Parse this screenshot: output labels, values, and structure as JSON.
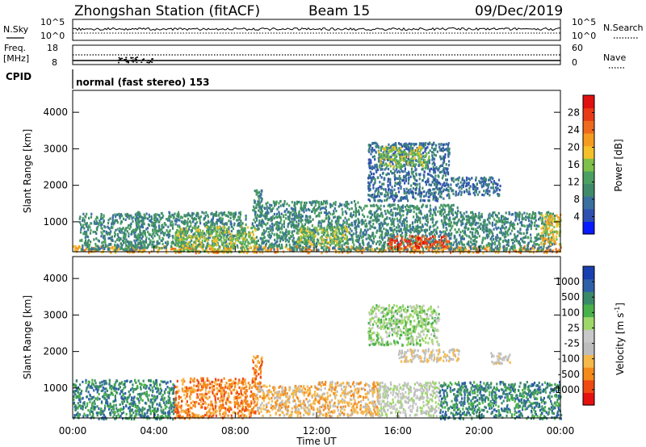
{
  "header": {
    "station": "Zhongshan Station (fitACF)",
    "beam": "Beam 15",
    "date": "09/Dec/2019"
  },
  "top_panels": {
    "nsky_label": "N.Sky",
    "nsky_ticks": [
      "10^5",
      "10^0"
    ],
    "nsearch_label": "N.Search",
    "nsearch_ticks": [
      "10^5",
      "10^0"
    ],
    "freq_label_1": "Freq.",
    "freq_label_2": "[MHz]",
    "freq_ticks": [
      "18",
      "8"
    ],
    "nave_label": "Nave",
    "nave_ticks": [
      "60",
      "0"
    ],
    "cpid_label": "CPID",
    "cpid_text": "normal (fast stereo) 153"
  },
  "colors": {
    "power_scale": [
      "#0a1aff",
      "#2f4fb0",
      "#3a6fa0",
      "#3f8a6a",
      "#4aa060",
      "#7ec04a",
      "#f5c02a",
      "#f59b20",
      "#ef6a1c",
      "#e83a16",
      "#e01010"
    ],
    "velocity_scale": [
      "#e61010",
      "#ef4a12",
      "#f58a1a",
      "#f5b84a",
      "#bdbdbd",
      "#c8c8c8",
      "#9fd86a",
      "#4ab04a",
      "#3a8a6a",
      "#2e60a8",
      "#1a3fb0"
    ]
  },
  "chart_data": [
    {
      "type": "heatmap",
      "title": "",
      "xlabel": "Time UT",
      "ylabel": "Slant Range [km]",
      "x_ticks": [
        "00:00",
        "04:00",
        "08:00",
        "12:00",
        "16:00",
        "20:00",
        "00:00"
      ],
      "y_ticks": [
        1000,
        2000,
        3000,
        4000
      ],
      "ylim": [
        180,
        4600
      ],
      "colorbar": {
        "label": "Power [dB]",
        "ticks": [
          4,
          8,
          12,
          16,
          20,
          24,
          28
        ],
        "range": [
          0,
          30
        ]
      },
      "regions": [
        {
          "t": [
            0.0,
            24.0
          ],
          "r": [
            180,
            360
          ],
          "level": 7
        },
        {
          "t": [
            0.3,
            3.5
          ],
          "r": [
            250,
            1250
          ],
          "level": 3
        },
        {
          "t": [
            3.0,
            8.5
          ],
          "r": [
            300,
            1300
          ],
          "level": 3
        },
        {
          "t": [
            5.0,
            9.0
          ],
          "r": [
            200,
            900
          ],
          "level": 5
        },
        {
          "t": [
            8.8,
            9.3
          ],
          "r": [
            900,
            1900
          ],
          "level": 3
        },
        {
          "t": [
            9.0,
            14.0
          ],
          "r": [
            250,
            1600
          ],
          "level": 3
        },
        {
          "t": [
            11.0,
            13.5
          ],
          "r": [
            400,
            900
          ],
          "level": 5
        },
        {
          "t": [
            14.0,
            19.0
          ],
          "r": [
            250,
            1500
          ],
          "level": 3
        },
        {
          "t": [
            15.5,
            18.5
          ],
          "r": [
            300,
            650
          ],
          "level": 9
        },
        {
          "t": [
            14.5,
            18.5
          ],
          "r": [
            1600,
            3200
          ],
          "level": 2
        },
        {
          "t": [
            15.0,
            17.5
          ],
          "r": [
            2500,
            3100
          ],
          "level": 5
        },
        {
          "t": [
            18.5,
            21.0
          ],
          "r": [
            1750,
            2250
          ],
          "level": 2
        },
        {
          "t": [
            19.0,
            23.7
          ],
          "r": [
            250,
            1300
          ],
          "level": 3
        },
        {
          "t": [
            23.0,
            24.0
          ],
          "r": [
            400,
            1250
          ],
          "level": 6
        }
      ]
    },
    {
      "type": "heatmap",
      "title": "",
      "xlabel": "Time UT",
      "ylabel": "Slant Range [km]",
      "x_ticks": [
        "00:00",
        "04:00",
        "08:00",
        "12:00",
        "16:00",
        "20:00",
        "00:00"
      ],
      "y_ticks": [
        1000,
        2000,
        3000,
        4000
      ],
      "ylim": [
        180,
        4600
      ],
      "colorbar": {
        "label": "Velocity [m s^-1]",
        "ticks": [
          -1000,
          -500,
          -100,
          -25,
          25,
          100,
          500,
          1000
        ]
      },
      "regions": [
        {
          "t": [
            0.0,
            5.0
          ],
          "r": [
            180,
            1250
          ],
          "level": 8
        },
        {
          "t": [
            5.0,
            9.0
          ],
          "r": [
            200,
            1300
          ],
          "level": 2
        },
        {
          "t": [
            8.8,
            9.3
          ],
          "r": [
            1000,
            1950
          ],
          "level": 2
        },
        {
          "t": [
            9.0,
            12.0
          ],
          "r": [
            250,
            1100
          ],
          "level": 3
        },
        {
          "t": [
            12.0,
            15.0
          ],
          "r": [
            250,
            1200
          ],
          "level": 3
        },
        {
          "t": [
            15.0,
            18.0
          ],
          "r": [
            250,
            1200
          ],
          "level": 5
        },
        {
          "t": [
            14.5,
            18.0
          ],
          "r": [
            2200,
            3300
          ],
          "level": 6
        },
        {
          "t": [
            16.0,
            19.0
          ],
          "r": [
            1750,
            2100
          ],
          "level": 4
        },
        {
          "t": [
            18.0,
            24.0
          ],
          "r": [
            180,
            1200
          ],
          "level": 8
        },
        {
          "t": [
            20.5,
            21.5
          ],
          "r": [
            1700,
            2000
          ],
          "level": 4
        }
      ]
    }
  ],
  "colorbar_labels": {
    "power_main": "Power [dB]",
    "velocity_main": "Velocity [m s",
    "velocity_exp": "-1",
    "velocity_close": "]",
    "power_ticks": [
      "4",
      "8",
      "12",
      "16",
      "20",
      "24",
      "28"
    ],
    "velocity_ticks": [
      "-1000",
      "-500",
      "-100",
      "-25",
      "25",
      "100",
      "500",
      "1000"
    ]
  }
}
